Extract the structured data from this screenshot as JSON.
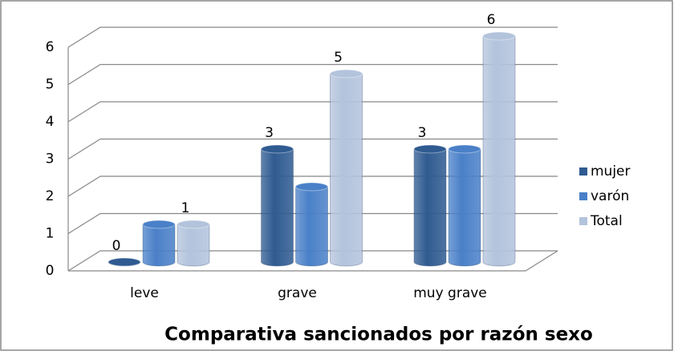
{
  "chart_data": {
    "type": "bar3d",
    "title": "Comparativa sancionados por razón sexo",
    "categories": [
      "leve",
      "grave",
      "muy grave"
    ],
    "series": [
      {
        "name": "mujer",
        "color": "#2f5b91",
        "values": [
          0,
          3,
          3
        ],
        "data_labels": true
      },
      {
        "name": "varón",
        "color": "#4a80c8",
        "values": [
          1,
          2,
          3
        ],
        "data_labels": false
      },
      {
        "name": "Total",
        "color": "#b3c3dc",
        "values": [
          1,
          5,
          6
        ],
        "data_labels": true
      }
    ],
    "ylim": [
      0,
      6
    ],
    "yticks": [
      0,
      1,
      2,
      3,
      4,
      5,
      6
    ],
    "grid": true,
    "legend": "right"
  }
}
